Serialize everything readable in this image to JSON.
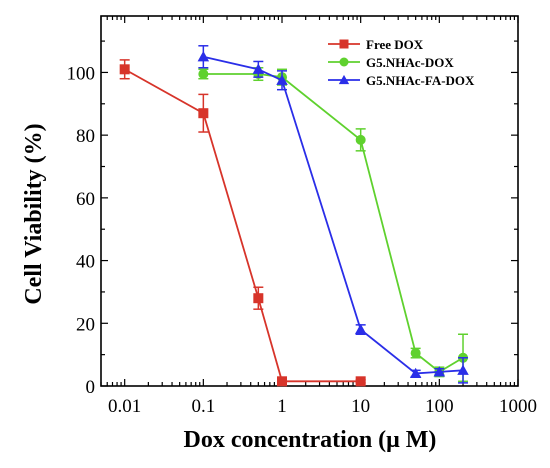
{
  "chart_data": {
    "type": "line",
    "title": "",
    "xlabel": "Dox concentration (μ M)",
    "ylabel": "Cell Viability (%)",
    "xscale": "log",
    "xlim": [
      0.005,
      1000
    ],
    "ylim": [
      0,
      118
    ],
    "xticks": [
      0.01,
      0.1,
      1,
      10,
      100,
      1000
    ],
    "xtick_labels": [
      "0.01",
      "0.1",
      "1",
      "10",
      "100",
      "1000"
    ],
    "yticks": [
      0,
      20,
      40,
      60,
      80,
      100
    ],
    "ytick_labels": [
      "0",
      "20",
      "40",
      "60",
      "80",
      "100"
    ],
    "grid": false,
    "legend_position": "top-right",
    "series": [
      {
        "name": "Free DOX",
        "color": "#d7342a",
        "marker": "square",
        "x": [
          0.01,
          0.1,
          0.5,
          1,
          10
        ],
        "y": [
          101,
          87,
          28,
          1.5,
          1.5
        ],
        "err": [
          3,
          6,
          3.5,
          0.5,
          0.5
        ]
      },
      {
        "name": "G5.NHAc-DOX",
        "color": "#5fd12e",
        "marker": "circle",
        "x": [
          0.1,
          0.5,
          1,
          10,
          50,
          100,
          200
        ],
        "y": [
          99.5,
          99.5,
          98.5,
          78.5,
          10.5,
          4.5,
          9
        ],
        "err": [
          1.5,
          2,
          2.5,
          3.5,
          1.5,
          1.5,
          7.5
        ]
      },
      {
        "name": "G5.NHAc-FA-DOX",
        "color": "#2a2ee8",
        "marker": "triangle",
        "x": [
          0.1,
          0.5,
          1,
          10,
          50,
          100,
          200
        ],
        "y": [
          105,
          101,
          97.5,
          18,
          4,
          4.5,
          5
        ],
        "err": [
          3.5,
          2.5,
          3,
          1.5,
          1,
          1,
          4
        ]
      }
    ]
  }
}
